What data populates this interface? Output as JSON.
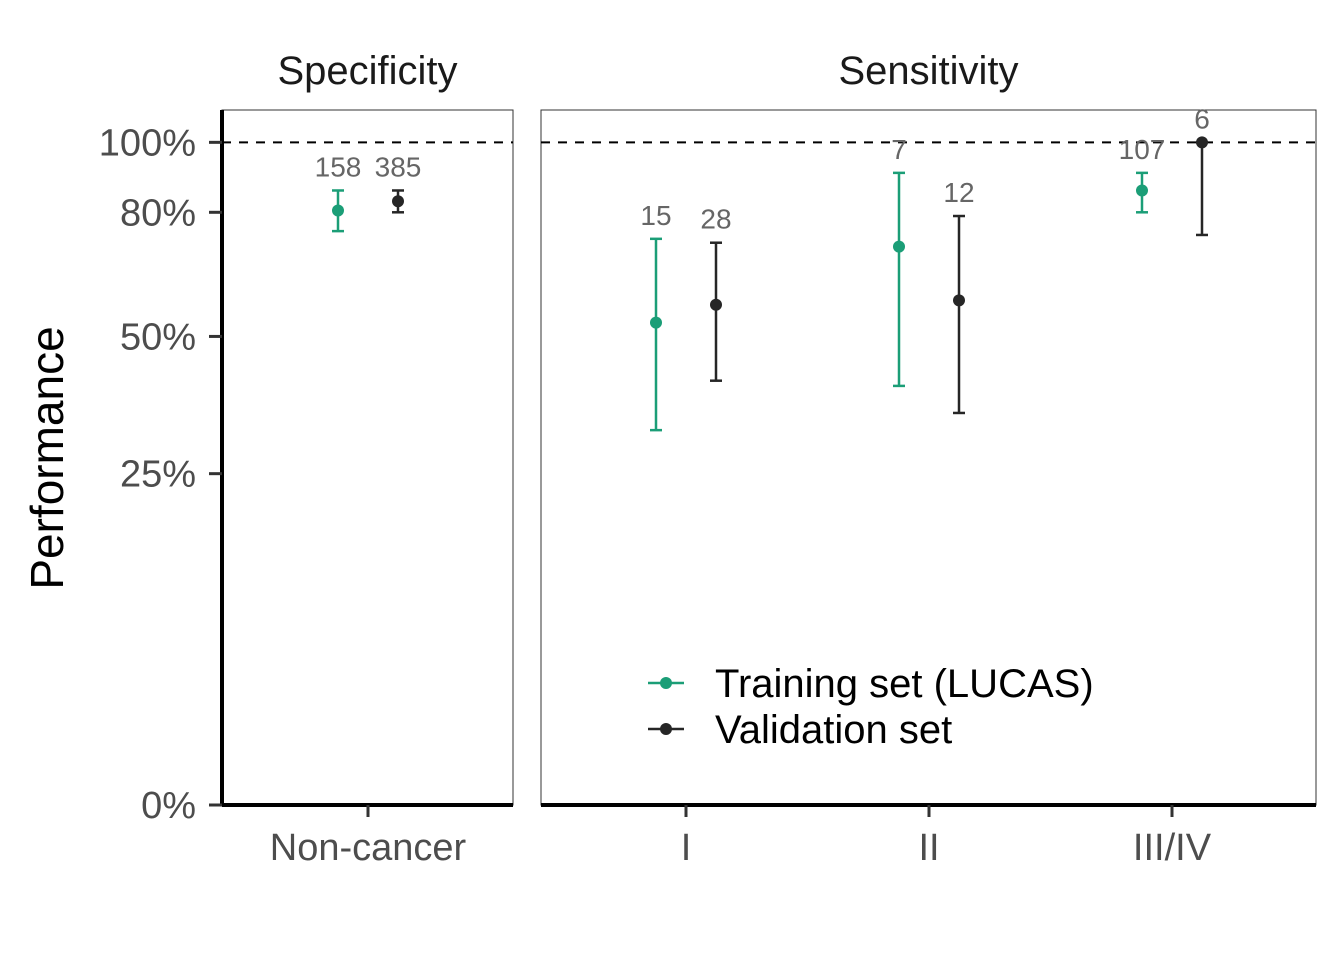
{
  "chart_data": {
    "type": "scatter",
    "ylabel": "Performance",
    "xlabel": "",
    "y_ticks": [
      {
        "value": 0,
        "label": "0%"
      },
      {
        "value": 25,
        "label": "25%"
      },
      {
        "value": 50,
        "label": "50%"
      },
      {
        "value": 80,
        "label": "80%"
      },
      {
        "value": 100,
        "label": "100%"
      }
    ],
    "ylim": [
      0,
      110
    ],
    "y_scale": "sqrt",
    "reference_line": 100,
    "grid": false,
    "legend_position": "bottom-inside",
    "colors": {
      "Training set (LUCAS)": "#1b9e77",
      "Validation set": "#262626"
    },
    "panels": [
      {
        "title": "Specificity",
        "categories": [
          "Non-cancer"
        ],
        "series": [
          {
            "name": "Training set (LUCAS)",
            "points": [
              {
                "x": "Non-cancer",
                "y": 80.5,
                "lower": 75,
                "upper": 86,
                "n": "158"
              }
            ]
          },
          {
            "name": "Validation set",
            "points": [
              {
                "x": "Non-cancer",
                "y": 83,
                "lower": 80,
                "upper": 86,
                "n": "385"
              }
            ]
          }
        ]
      },
      {
        "title": "Sensitivity",
        "categories": [
          "I",
          "II",
          "III/IV"
        ],
        "series": [
          {
            "name": "Training set (LUCAS)",
            "points": [
              {
                "x": "I",
                "y": 53,
                "lower": 32,
                "upper": 73,
                "n": "15"
              },
              {
                "x": "II",
                "y": 71,
                "lower": 40,
                "upper": 91,
                "n": "7"
              },
              {
                "x": "III/IV",
                "y": 86,
                "lower": 80,
                "upper": 91,
                "n": "107"
              }
            ]
          },
          {
            "name": "Validation set",
            "points": [
              {
                "x": "I",
                "y": 57,
                "lower": 41,
                "upper": 72,
                "n": "28"
              },
              {
                "x": "II",
                "y": 58,
                "lower": 35,
                "upper": 79,
                "n": "12"
              },
              {
                "x": "III/IV",
                "y": 100,
                "lower": 74,
                "upper": 100,
                "n": "6"
              }
            ]
          }
        ]
      }
    ]
  }
}
